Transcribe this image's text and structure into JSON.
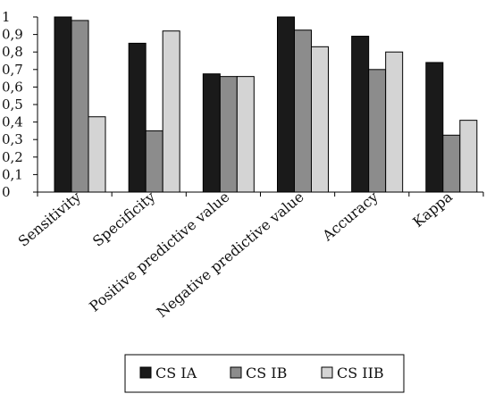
{
  "chart_data": {
    "type": "bar",
    "title": "",
    "xlabel": "",
    "ylabel": "",
    "ylim": [
      0,
      1
    ],
    "y_ticks": [
      "0",
      "0,1",
      "0,2",
      "0,3",
      "0,4",
      "0,5",
      "0,6",
      "0,7",
      "0,8",
      "0,9",
      "1"
    ],
    "categories": [
      "Sensitivity",
      "Specificity",
      "Positive predictive value",
      "Negative predictive value",
      "Accuracy",
      "Kappa"
    ],
    "series": [
      {
        "name": "CS IA",
        "color": "#1a1a1a",
        "values": [
          1.0,
          0.85,
          0.675,
          1.0,
          0.89,
          0.74
        ]
      },
      {
        "name": "CS IB",
        "color": "#8c8c8c",
        "values": [
          0.98,
          0.35,
          0.66,
          0.925,
          0.7,
          0.325
        ]
      },
      {
        "name": "CS IIB",
        "color": "#d4d4d4",
        "values": [
          0.43,
          0.92,
          0.66,
          0.83,
          0.8,
          0.41
        ]
      }
    ],
    "grid": false,
    "legend_position": "bottom"
  }
}
